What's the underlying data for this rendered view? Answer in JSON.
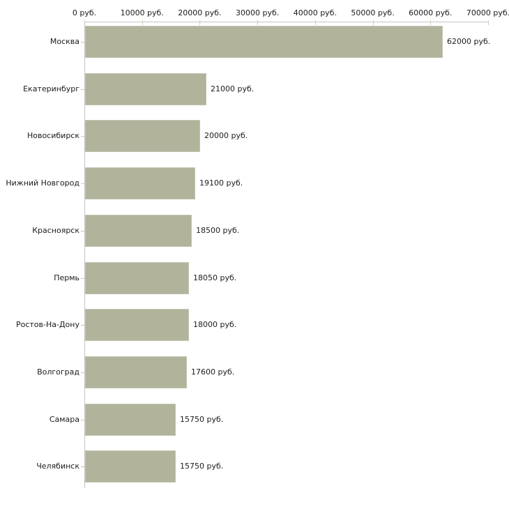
{
  "chart_data": {
    "type": "bar",
    "orientation": "horizontal",
    "title": "",
    "xlabel": "",
    "ylabel": "",
    "unit_suffix": " руб.",
    "xlim": [
      0,
      70000
    ],
    "grid": false,
    "legend": false,
    "axis_position": "top",
    "categories": [
      "Москва",
      "Екатеринбург",
      "Новосибирск",
      "Нижний Новгород",
      "Красноярск",
      "Пермь",
      "Ростов-На-Дону",
      "Волгоград",
      "Самара",
      "Челябинск"
    ],
    "values": [
      62000,
      21000,
      20000,
      19100,
      18500,
      18050,
      18000,
      17600,
      15750,
      15750
    ],
    "value_labels": [
      "62000 руб.",
      "21000 руб.",
      "20000 руб.",
      "19100 руб.",
      "18500 руб.",
      "18050 руб.",
      "18000 руб.",
      "17600 руб.",
      "15750 руб.",
      "15750 руб."
    ],
    "x_ticks": [
      0,
      10000,
      20000,
      30000,
      40000,
      50000,
      60000,
      70000
    ],
    "x_tick_labels": [
      "0 руб.",
      "10000 руб.",
      "20000 руб.",
      "30000 руб.",
      "40000 руб.",
      "50000 руб.",
      "60000 руб.",
      "70000 руб."
    ],
    "colors": {
      "bar_fill": "#b1b49b",
      "axis_line": "#c3c3c3",
      "tick_mark": "#ccceb2",
      "text": "#1a1a1a",
      "background": "#ffffff"
    }
  }
}
